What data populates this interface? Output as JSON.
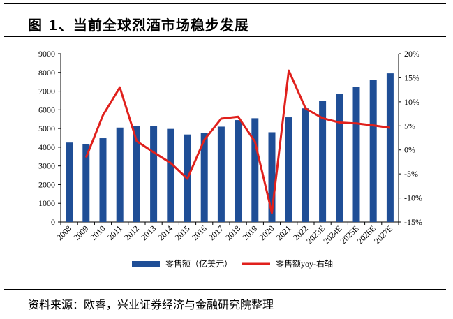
{
  "header": {
    "title": "图 1、当前全球烈酒市场稳步发展"
  },
  "footer": {
    "source": "资料来源：欧睿，兴业证券经济与金融研究院整理"
  },
  "colors": {
    "bar": "#1f4e96",
    "line": "#e0201c"
  },
  "chart_data": {
    "type": "bar",
    "categories": [
      "2008",
      "2009",
      "2010",
      "2011",
      "2012",
      "2013",
      "2014",
      "2015",
      "2016",
      "2017",
      "2018",
      "2019",
      "2020",
      "2021",
      "2022",
      "2023E",
      "2024E",
      "2025E",
      "2026E",
      "2027E"
    ],
    "series": [
      {
        "name": "零售额（亿美元）",
        "type": "bar",
        "axis": "left",
        "values": [
          4250,
          4180,
          4480,
          5050,
          5150,
          5120,
          4980,
          4680,
          4780,
          5100,
          5450,
          5550,
          4800,
          5600,
          6080,
          6480,
          6850,
          7230,
          7600,
          7950
        ]
      },
      {
        "name": "零售额yoy-右轴",
        "type": "line",
        "axis": "right",
        "unit": "%",
        "values": [
          null,
          -1.6,
          7.2,
          13.0,
          1.8,
          -0.5,
          -2.7,
          -6.0,
          2.1,
          6.5,
          6.9,
          1.7,
          -13.1,
          16.5,
          8.6,
          6.6,
          5.7,
          5.5,
          5.1,
          4.6
        ]
      }
    ],
    "left_axis": {
      "ylim": [
        0,
        9000
      ],
      "ticks": [
        "0",
        "1000",
        "2000",
        "3000",
        "4000",
        "5000",
        "6000",
        "7000",
        "8000",
        "9000"
      ]
    },
    "right_axis": {
      "ylim": [
        -15,
        20
      ],
      "ticks": [
        "-15%",
        "-10%",
        "-5%",
        "0%",
        "5%",
        "10%",
        "15%",
        "20%"
      ]
    },
    "legend": {
      "position": "bottom"
    }
  }
}
